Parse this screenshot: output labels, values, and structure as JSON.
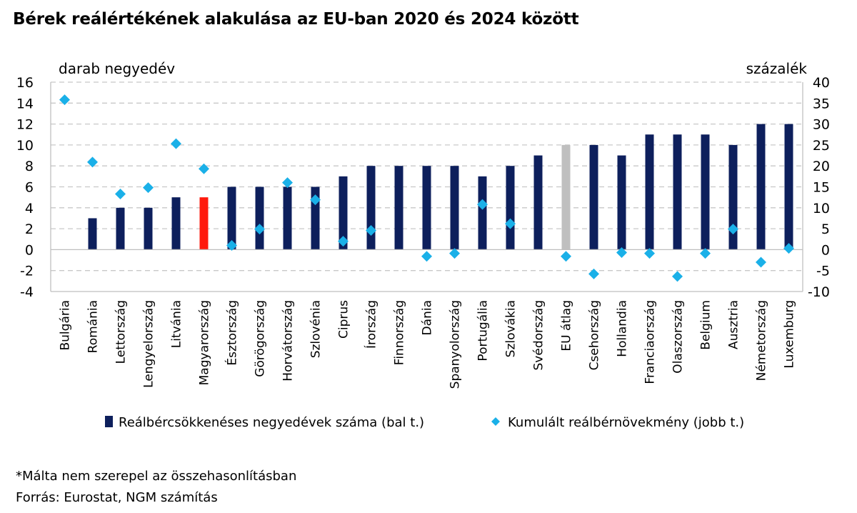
{
  "page": {
    "title": "Bérek reálértékének alakulása az EU-ban 2020 és 2024 között",
    "footnote": "*Málta nem szerepel az összehasonlításban",
    "source": "Forrás: Eurostat, NGM számítás"
  },
  "chart_data": {
    "type": "bar",
    "y_left_label": "darab negyedév",
    "y_right_label": "százalék",
    "ylim_left": [
      -4,
      16
    ],
    "yticks_left": [
      -4,
      -2,
      0,
      2,
      4,
      6,
      8,
      10,
      12,
      14,
      16
    ],
    "ylim_right": [
      -10,
      40
    ],
    "yticks_right": [
      -10,
      -5,
      0,
      5,
      10,
      15,
      20,
      25,
      30,
      35,
      40
    ],
    "grid": true,
    "legend_position": "bottom",
    "categories": [
      "Bulgária",
      "Románia",
      "Lettország",
      "Lengyelország",
      "Litvánia",
      "Magyarország",
      "Észtország",
      "Görögország",
      "Horvátország",
      "Szlovénia",
      "Ciprus",
      "Írország",
      "Finnország",
      "Dánia",
      "Spanyolország",
      "Portugália",
      "Szlovákia",
      "Svédország",
      "EU átlag",
      "Csehország",
      "Hollandia",
      "Franciaország",
      "Olaszország",
      "Belgium",
      "Ausztria",
      "Németország",
      "Luxemburg"
    ],
    "series": [
      {
        "name": "Reálbércsökkenéses negyedévek száma (bal t.)",
        "kind": "bar",
        "axis": "left",
        "color": "#0d1f5c",
        "values": [
          0,
          3,
          4,
          4,
          5,
          5,
          6,
          6,
          6,
          6,
          7,
          8,
          8,
          8,
          8,
          7,
          8,
          9,
          10,
          10,
          9,
          11,
          11,
          11,
          10,
          12,
          12
        ],
        "highlight_colors": {
          "Magyarország": "#ff1a0d",
          "EU átlag": "#bfbfbf"
        }
      },
      {
        "name": "Kumulált reálbérnövekmény (jobb t.)",
        "kind": "scatter",
        "axis": "right",
        "marker": "diamond",
        "color": "#1ab0e8",
        "values": [
          35.8,
          20.9,
          13.3,
          14.8,
          25.3,
          19.3,
          1.0,
          4.9,
          16.0,
          11.9,
          2.0,
          4.6,
          null,
          -1.6,
          -0.9,
          10.8,
          6.2,
          null,
          -1.6,
          -5.8,
          -0.7,
          -0.9,
          -6.4,
          -0.9,
          4.9,
          -3.0,
          0.3
        ]
      }
    ]
  }
}
